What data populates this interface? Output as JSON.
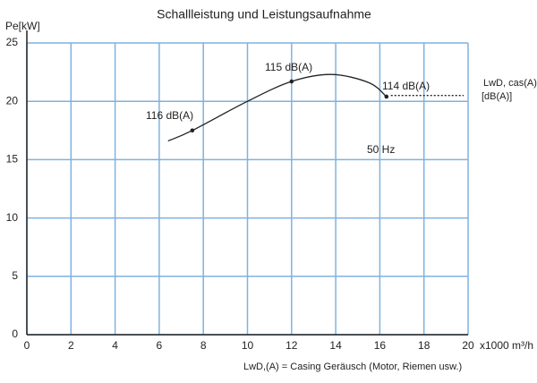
{
  "chart_data": {
    "type": "line",
    "title": "Schallleistung und Leistungsaufnahme",
    "y_label": "Pe[kW]",
    "x_label": "x1000 m³/h",
    "xlim": [
      0,
      20
    ],
    "xticks": [
      0,
      2,
      4,
      6,
      8,
      10,
      12,
      14,
      16,
      18,
      20
    ],
    "ylim": [
      0,
      25
    ],
    "yticks": [
      0,
      5,
      10,
      15,
      20,
      25
    ],
    "grid": true,
    "grid_color": "#7fb2e0",
    "series": [
      {
        "type": "line",
        "color": "#222222",
        "x": [
          6.4,
          7.5,
          10,
          12,
          13.8,
          15.5,
          16.3
        ],
        "values": [
          16.6,
          17.5,
          20.0,
          21.7,
          22.3,
          21.6,
          20.4
        ]
      },
      {
        "type": "scatter",
        "color": "#222222",
        "x": [
          7.5,
          12,
          16.3
        ],
        "values": [
          17.5,
          21.7,
          20.4
        ]
      },
      {
        "type": "dotted",
        "color": "#222222",
        "x": [
          16.5,
          19.8
        ],
        "values": [
          20.5,
          20.5
        ]
      }
    ],
    "annotations": [
      "116 dB(A)",
      "115 dB(A)",
      "114 dB(A)",
      "50 Hz",
      "LwD, cas(A)",
      "[dB(A)]"
    ],
    "footnote": "LwD,(A) = Casing Geräusch (Motor, Riemen usw.)"
  }
}
